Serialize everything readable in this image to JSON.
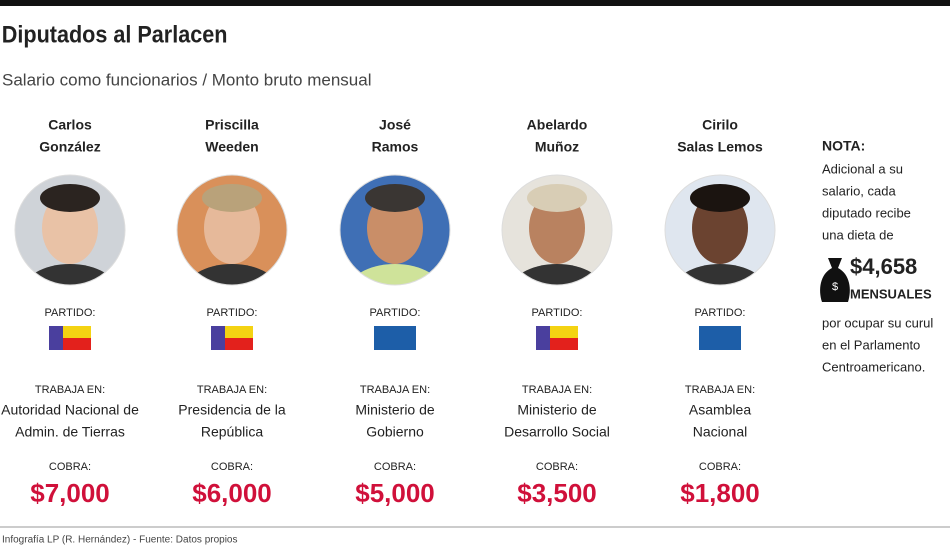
{
  "header": {
    "title": "Diputados al Parlacen",
    "subtitle": "Salario como funcionarios / Monto bruto mensual"
  },
  "labels": {
    "party": "PARTIDO:",
    "works_at": "TRABAJA EN:",
    "earns": "COBRA:"
  },
  "people": [
    {
      "name": [
        "Carlos",
        "González"
      ],
      "flag": [
        "#4a3f9e",
        "#f4d312",
        "#e3211c"
      ],
      "works_at": [
        "Autoridad Nacional de",
        "Admin. de Tierras"
      ],
      "earns": "$7,000"
    },
    {
      "name": [
        "Priscilla",
        "Weeden"
      ],
      "flag": [
        "#4a3f9e",
        "#f4d312",
        "#e3211c"
      ],
      "works_at": [
        "Presidencia de la",
        "República"
      ],
      "earns": "$6,000"
    },
    {
      "name": [
        "José",
        "Ramos"
      ],
      "flag": [
        "#1d5ea8",
        "#1d5ea8",
        "#1d5ea8"
      ],
      "works_at": [
        "Ministerio de",
        "Gobierno"
      ],
      "earns": "$5,000"
    },
    {
      "name": [
        "Abelardo",
        "Muñoz"
      ],
      "flag": [
        "#4a3f9e",
        "#f4d312",
        "#e3211c"
      ],
      "works_at": [
        "Ministerio de",
        "Desarrollo Social"
      ],
      "earns": "$3,500"
    },
    {
      "name": [
        "Cirilo",
        "Salas Lemos"
      ],
      "flag": [
        "#1d5ea8",
        "#1d5ea8",
        "#1d5ea8"
      ],
      "works_at": [
        "Asamblea",
        "Nacional"
      ],
      "earns": "$1,800"
    }
  ],
  "note": {
    "title": "NOTA:",
    "lines_before": [
      "Adicional a su",
      "salario, cada",
      "diputado recibe",
      "una dieta de"
    ],
    "amount": "$4,658",
    "amount_unit": "MENSUALES",
    "lines_after": [
      "por ocupar su curul",
      "en el Parlamento",
      "Centroamericano."
    ]
  },
  "footer": "Infografía LP (R. Hernández) - Fuente: Datos propios"
}
